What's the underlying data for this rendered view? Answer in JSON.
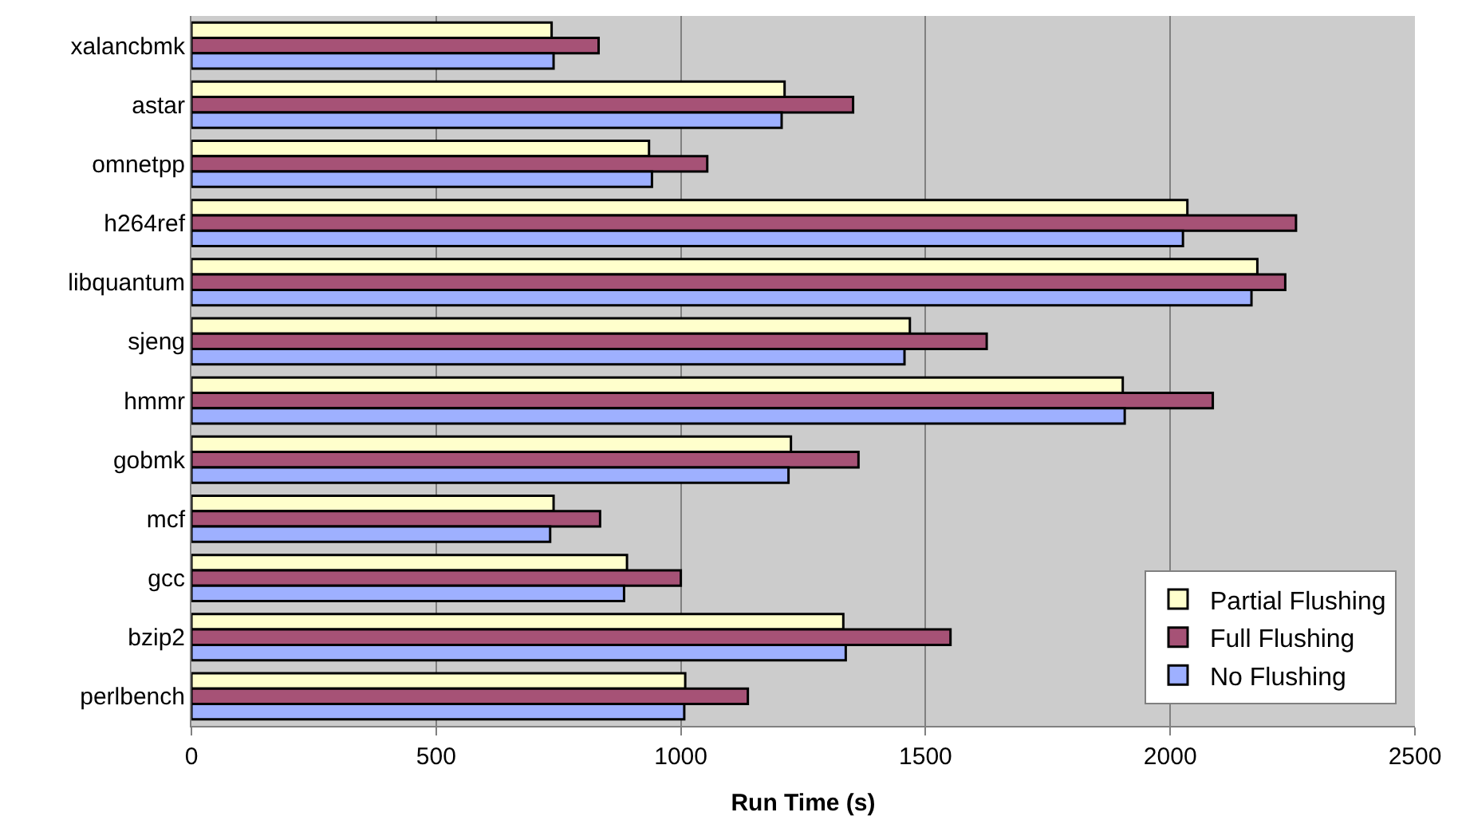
{
  "chart_data": {
    "type": "bar",
    "orientation": "horizontal",
    "xlabel": "Run Time (s)",
    "categories": [
      "xalancbmk",
      "astar",
      "omnetpp",
      "h264ref",
      "libquantum",
      "sjeng",
      "hmmr",
      "gobmk",
      "mcf",
      "gcc",
      "bzip2",
      "perlbench"
    ],
    "series": [
      {
        "name": "Partial Flushing",
        "color": "#ffffcc",
        "values": [
          736,
          1212,
          935,
          2035,
          2178,
          1468,
          1903,
          1225,
          740,
          890,
          1332,
          1009
        ]
      },
      {
        "name": "Full Flushing",
        "color": "#a65276",
        "values": [
          832,
          1352,
          1054,
          2257,
          2235,
          1625,
          2087,
          1363,
          835,
          1000,
          1551,
          1137
        ]
      },
      {
        "name": "No Flushing",
        "color": "#9eb0ff",
        "values": [
          740,
          1206,
          941,
          2026,
          2166,
          1457,
          1907,
          1220,
          733,
          884,
          1337,
          1007
        ]
      }
    ],
    "xlim": [
      0,
      2500
    ],
    "xticks": [
      0,
      500,
      1000,
      1500,
      2000,
      2500
    ],
    "grid": "x",
    "legend": "bottom right"
  }
}
